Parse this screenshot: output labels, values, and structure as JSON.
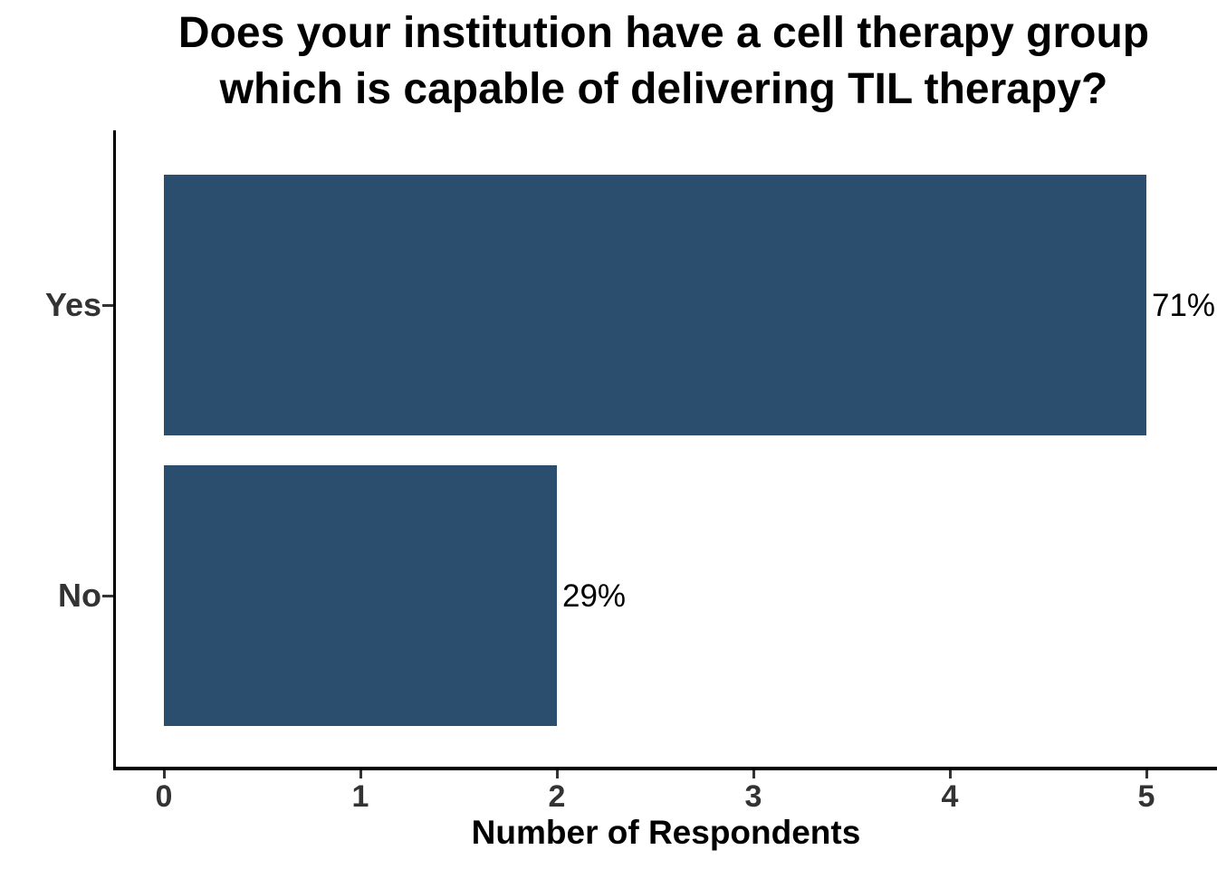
{
  "chart_data": {
    "type": "bar",
    "orientation": "horizontal",
    "title": "Does your institution have a cell therapy group which is capable of delivering TIL therapy?",
    "title_lines": [
      "Does your institution have a cell therapy group",
      "which is capable of delivering TIL therapy?"
    ],
    "categories": [
      "Yes",
      "No"
    ],
    "values": [
      5,
      2
    ],
    "percent_labels": [
      "71%",
      "29%"
    ],
    "xlabel": "Number of Respondents",
    "ylabel": "",
    "x_ticks": [
      0,
      1,
      2,
      3,
      4,
      5
    ],
    "xlim": [
      0,
      5.36
    ],
    "grid": false,
    "legend_position": "none",
    "bar_color": "#2B4D6E",
    "axis_line_color": "#000000",
    "axis_text_color": "#333333",
    "label_color": "#000000",
    "background_color": "#ffffff"
  }
}
